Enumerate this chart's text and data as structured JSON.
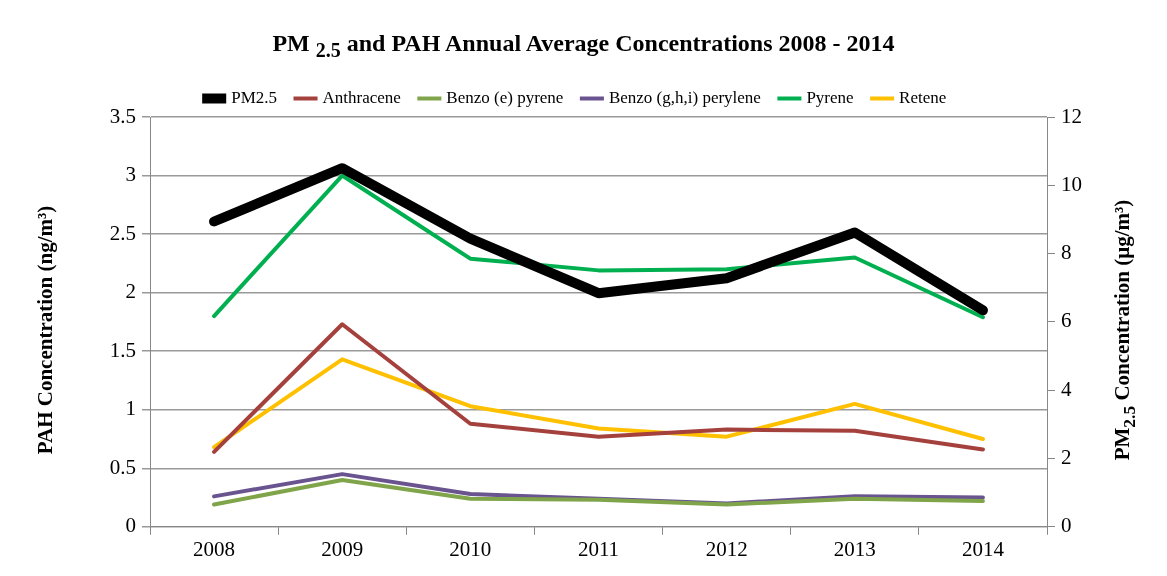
{
  "chart_data": {
    "type": "line",
    "title": "PM $_{2.5}$ and PAH Annual Average Concentrations  2008 - 2014",
    "ylabel": "PAH Concentration (ng/m³)",
    "y2label": "PM$_{2.5}$ Concentration (µg/m³)",
    "categories": [
      "2008",
      "2009",
      "2010",
      "2011",
      "2012",
      "2013",
      "2014"
    ],
    "series": [
      {
        "name": "Anthracene",
        "color": "#a5413d",
        "values": [
          0.64,
          1.73,
          0.88,
          0.77,
          0.83,
          0.82,
          0.66
        ]
      },
      {
        "name": "Benzo (e) pyrene",
        "color": "#7fa44a",
        "values": [
          0.19,
          0.4,
          0.24,
          0.23,
          0.19,
          0.24,
          0.22
        ]
      },
      {
        "name": "Benzo (g,h,i) perylene",
        "color": "#6a5490",
        "values": [
          0.26,
          0.45,
          0.28,
          0.24,
          0.2,
          0.26,
          0.25
        ]
      },
      {
        "name": "Pyrene",
        "color": "#00b050",
        "values": [
          1.8,
          3.0,
          2.29,
          2.19,
          2.2,
          2.3,
          1.79
        ]
      },
      {
        "name": "Retene",
        "color": "#ffc000",
        "values": [
          0.68,
          1.43,
          1.03,
          0.84,
          0.77,
          1.05,
          0.75
        ]
      },
      {
        "name": "PM2.5",
        "color": "#000000",
        "axis": "y2",
        "values": [
          8.94,
          10.5,
          8.44,
          6.84,
          7.28,
          8.62,
          6.34
        ]
      }
    ],
    "ylim": [
      0,
      3.5
    ],
    "yticks": [
      0,
      0.5,
      1,
      1.5,
      2,
      2.5,
      3,
      3.5
    ],
    "y2lim": [
      0,
      12
    ],
    "y2ticks": [
      0,
      2,
      4,
      6,
      8,
      10,
      12
    ],
    "grid": "y",
    "legend": "top",
    "marker": "none",
    "line_style": "solid"
  }
}
